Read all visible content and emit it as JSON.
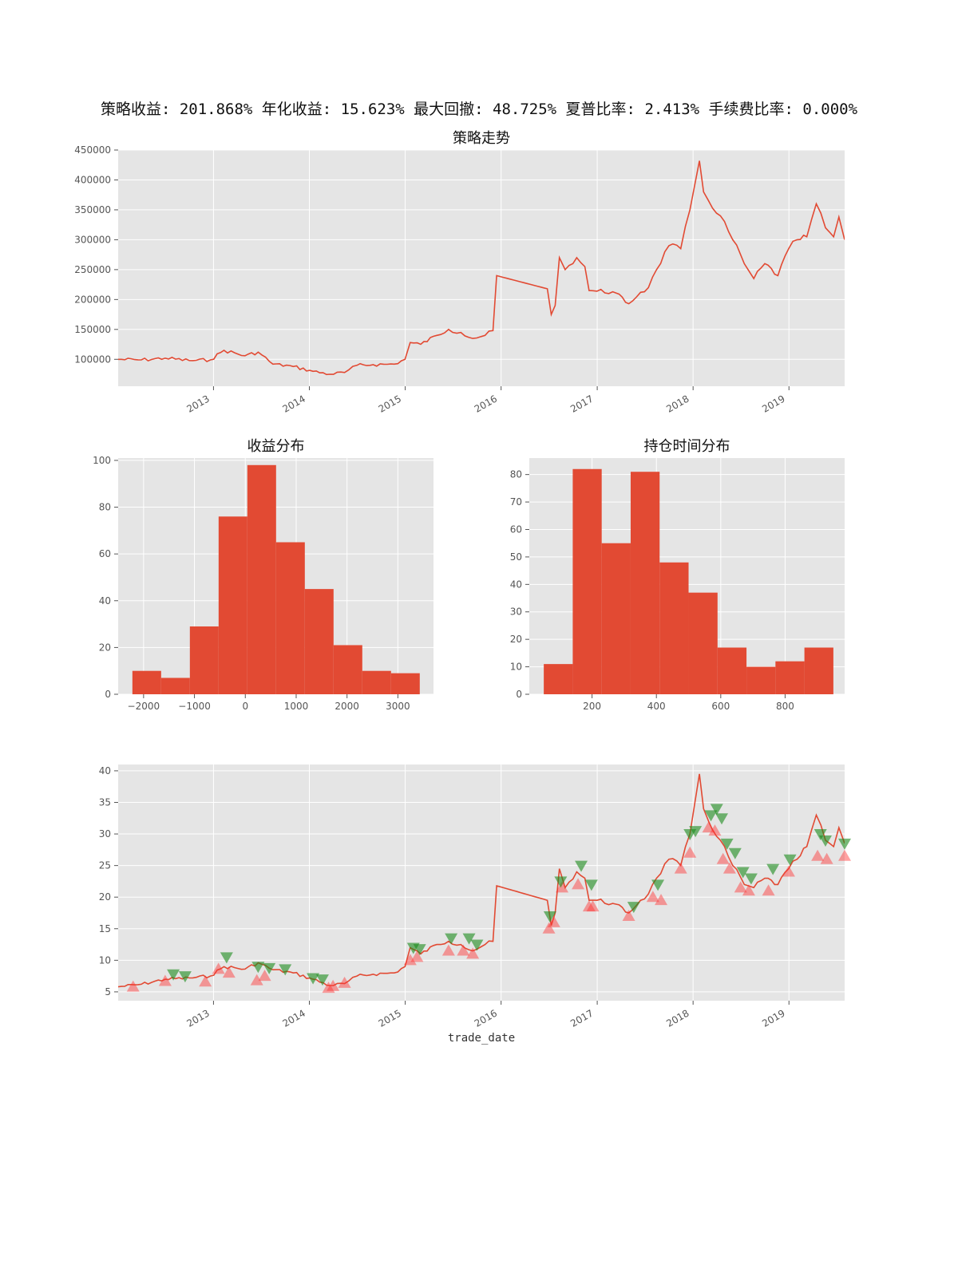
{
  "figure": {
    "suptitle": "策略收益: 201.868% 年化收益: 15.623% 最大回撤: 48.725% 夏普比率: 2.413% 手续费比率: 0.000%"
  },
  "colors": {
    "line": "#e24a33",
    "bar": "#e24a33",
    "panel_bg": "#e5e5e5",
    "grid": "#ffffff",
    "buy_marker": "#ff3030",
    "sell_marker": "#1a8a1a"
  },
  "chart_data": [
    {
      "id": "equity",
      "type": "line",
      "title": "策略走势",
      "xlabel": "",
      "ylabel": "",
      "x_tick_labels": [
        "2013",
        "2014",
        "2015",
        "2016",
        "2017",
        "2018",
        "2019"
      ],
      "y_ticks": [
        100000,
        150000,
        200000,
        250000,
        300000,
        350000,
        400000,
        450000
      ],
      "xlim": [
        "2012-01-04",
        "2019-08-01"
      ],
      "ylim": [
        55000,
        450000
      ],
      "grid": true,
      "series": [
        {
          "x": [
            "2012-01-04",
            "2012-04-01",
            "2012-07-01",
            "2012-10-01",
            "2012-12-20",
            "2013-02-10",
            "2013-05-01",
            "2013-06-20",
            "2013-08-15",
            "2013-11-01",
            "2014-01-15",
            "2014-03-20",
            "2014-05-15",
            "2014-07-01",
            "2014-09-01",
            "2014-11-20",
            "2014-12-31",
            "2015-01-20",
            "2015-03-01",
            "2015-05-01",
            "2015-06-15",
            "2015-08-01",
            "2015-09-15",
            "2015-11-01",
            "2015-12-01",
            "2015-12-15",
            "2016-06-25",
            "2016-07-10",
            "2016-07-25",
            "2016-08-10",
            "2016-09-01",
            "2016-10-15",
            "2016-11-15",
            "2016-12-01",
            "2016-12-31",
            "2017-03-01",
            "2017-05-01",
            "2017-06-15",
            "2017-07-15",
            "2017-08-15",
            "2017-10-01",
            "2017-11-15",
            "2017-12-20",
            "2018-01-25",
            "2018-02-10",
            "2018-03-01",
            "2018-04-15",
            "2018-06-01",
            "2018-07-15",
            "2018-08-20",
            "2018-10-01",
            "2018-11-20",
            "2018-12-31",
            "2019-02-01",
            "2019-03-10",
            "2019-04-15",
            "2019-05-20",
            "2019-06-20",
            "2019-07-10",
            "2019-08-01"
          ],
          "y": [
            100000,
            99000,
            102000,
            98000,
            99000,
            115000,
            106000,
            112000,
            92000,
            88000,
            80000,
            75000,
            78000,
            90000,
            91000,
            92000,
            100000,
            128000,
            125000,
            140000,
            150000,
            145000,
            135000,
            140000,
            148000,
            240000,
            218000,
            175000,
            190000,
            270000,
            250000,
            270000,
            255000,
            215000,
            214000,
            213000,
            193000,
            212000,
            220000,
            250000,
            290000,
            285000,
            350000,
            432000,
            380000,
            365000,
            340000,
            300000,
            260000,
            235000,
            260000,
            240000,
            285000,
            300000,
            305000,
            360000,
            320000,
            305000,
            338000,
            300000
          ]
        }
      ]
    },
    {
      "id": "profit_hist",
      "type": "bar",
      "title": "收益分布",
      "x_ticks": [
        -2000,
        -1000,
        0,
        1000,
        2000,
        3000
      ],
      "x_tick_labels": [
        "−2000",
        "−1000",
        "0",
        "1000",
        "2000",
        "3000"
      ],
      "y_ticks": [
        0,
        20,
        40,
        60,
        80,
        100
      ],
      "xlim": [
        -2500,
        3700
      ],
      "ylim": [
        0,
        101
      ],
      "bin_edges": [
        -2220,
        -1655,
        -1090,
        -525,
        40,
        605,
        1170,
        1735,
        2300,
        2865,
        3430
      ],
      "values": [
        10,
        7,
        29,
        76,
        98,
        65,
        45,
        21,
        10,
        9
      ]
    },
    {
      "id": "hold_hist",
      "type": "bar",
      "title": "持仓时间分布",
      "x_ticks": [
        200,
        400,
        600,
        800
      ],
      "x_tick_labels": [
        "200",
        "400",
        "600",
        "800"
      ],
      "y_ticks": [
        0,
        10,
        20,
        30,
        40,
        50,
        60,
        70,
        80
      ],
      "xlim": [
        5,
        985
      ],
      "ylim": [
        0,
        86
      ],
      "bin_edges": [
        50,
        140,
        230,
        320,
        410,
        500,
        590,
        680,
        770,
        860,
        950
      ],
      "values": [
        11,
        82,
        55,
        81,
        48,
        37,
        17,
        10,
        12,
        17
      ]
    },
    {
      "id": "trades",
      "type": "line",
      "title": "",
      "xlabel": "trade_date",
      "ylabel": "",
      "x_tick_labels": [
        "2013",
        "2014",
        "2015",
        "2016",
        "2017",
        "2018",
        "2019"
      ],
      "y_ticks": [
        5,
        10,
        15,
        20,
        25,
        30,
        35,
        40
      ],
      "xlim": [
        "2012-01-04",
        "2019-08-01"
      ],
      "ylim": [
        3.6,
        41
      ],
      "grid": true,
      "series": [
        {
          "x": [
            "2012-01-04",
            "2012-04-01",
            "2012-07-01",
            "2012-10-01",
            "2012-12-20",
            "2013-02-10",
            "2013-05-01",
            "2013-06-20",
            "2013-08-15",
            "2013-11-01",
            "2014-01-15",
            "2014-03-20",
            "2014-05-15",
            "2014-07-01",
            "2014-09-01",
            "2014-11-20",
            "2014-12-31",
            "2015-01-20",
            "2015-03-01",
            "2015-05-01",
            "2015-06-15",
            "2015-08-01",
            "2015-09-15",
            "2015-11-01",
            "2015-12-01",
            "2015-12-15",
            "2016-06-25",
            "2016-07-10",
            "2016-07-25",
            "2016-08-10",
            "2016-09-01",
            "2016-10-15",
            "2016-11-15",
            "2016-12-01",
            "2016-12-31",
            "2017-03-01",
            "2017-05-01",
            "2017-06-15",
            "2017-07-15",
            "2017-08-15",
            "2017-10-01",
            "2017-11-15",
            "2017-12-20",
            "2018-01-25",
            "2018-02-10",
            "2018-03-01",
            "2018-04-15",
            "2018-06-01",
            "2018-07-15",
            "2018-08-20",
            "2018-10-01",
            "2018-11-20",
            "2018-12-31",
            "2019-02-01",
            "2019-03-10",
            "2019-04-15",
            "2019-05-20",
            "2019-06-20",
            "2019-07-10",
            "2019-08-01"
          ],
          "y": [
            5.8,
            6.2,
            7.0,
            7.2,
            7.5,
            9.0,
            8.6,
            9.6,
            8.5,
            8.0,
            7.0,
            6.0,
            6.3,
            7.5,
            7.8,
            8.0,
            9.0,
            12.0,
            11.0,
            12.5,
            13.0,
            12.5,
            11.5,
            12.5,
            13.0,
            21.8,
            19.5,
            15.5,
            17.5,
            24.5,
            21.5,
            24.0,
            23.0,
            19.5,
            19.5,
            19.0,
            17.5,
            19.5,
            20.5,
            23.0,
            26.0,
            25.0,
            30.0,
            39.5,
            34.0,
            32.0,
            29.0,
            25.0,
            22.0,
            21.5,
            23.0,
            22.0,
            24.5,
            26.0,
            28.0,
            33.0,
            29.0,
            28.0,
            31.0,
            28.5
          ]
        }
      ],
      "buy_points": [
        {
          "x": "2012-03-01",
          "y": 5.8
        },
        {
          "x": "2012-07-01",
          "y": 6.7
        },
        {
          "x": "2012-12-01",
          "y": 6.6
        },
        {
          "x": "2013-01-20",
          "y": 8.6
        },
        {
          "x": "2013-03-01",
          "y": 8.0
        },
        {
          "x": "2013-06-15",
          "y": 6.8
        },
        {
          "x": "2013-07-15",
          "y": 7.5
        },
        {
          "x": "2014-03-15",
          "y": 5.6
        },
        {
          "x": "2014-04-01",
          "y": 5.9
        },
        {
          "x": "2014-05-15",
          "y": 6.4
        },
        {
          "x": "2015-01-20",
          "y": 10.0
        },
        {
          "x": "2015-02-15",
          "y": 10.5
        },
        {
          "x": "2015-06-15",
          "y": 11.5
        },
        {
          "x": "2015-08-10",
          "y": 11.5
        },
        {
          "x": "2015-09-15",
          "y": 11.0
        },
        {
          "x": "2016-07-01",
          "y": 15.0
        },
        {
          "x": "2016-07-20",
          "y": 16.0
        },
        {
          "x": "2016-08-20",
          "y": 21.5
        },
        {
          "x": "2016-10-20",
          "y": 22.0
        },
        {
          "x": "2016-12-01",
          "y": 18.5
        },
        {
          "x": "2016-12-15",
          "y": 18.5
        },
        {
          "x": "2017-05-01",
          "y": 17.0
        },
        {
          "x": "2017-08-01",
          "y": 20.0
        },
        {
          "x": "2017-09-01",
          "y": 19.5
        },
        {
          "x": "2017-11-15",
          "y": 24.5
        },
        {
          "x": "2017-12-20",
          "y": 27.0
        },
        {
          "x": "2018-03-01",
          "y": 31.0
        },
        {
          "x": "2018-03-25",
          "y": 30.5
        },
        {
          "x": "2018-04-25",
          "y": 26.0
        },
        {
          "x": "2018-05-20",
          "y": 24.5
        },
        {
          "x": "2018-07-01",
          "y": 21.5
        },
        {
          "x": "2018-08-01",
          "y": 21.0
        },
        {
          "x": "2018-10-15",
          "y": 21.0
        },
        {
          "x": "2018-12-31",
          "y": 24.0
        },
        {
          "x": "2019-04-20",
          "y": 26.5
        },
        {
          "x": "2019-05-25",
          "y": 26.0
        },
        {
          "x": "2019-08-01",
          "y": 26.5
        }
      ],
      "sell_points": [
        {
          "x": "2012-08-01",
          "y": 7.8
        },
        {
          "x": "2012-09-15",
          "y": 7.5
        },
        {
          "x": "2013-02-20",
          "y": 10.5
        },
        {
          "x": "2013-06-20",
          "y": 9.0
        },
        {
          "x": "2013-08-01",
          "y": 8.8
        },
        {
          "x": "2013-10-01",
          "y": 8.6
        },
        {
          "x": "2014-01-15",
          "y": 7.2
        },
        {
          "x": "2014-02-20",
          "y": 7.0
        },
        {
          "x": "2015-02-01",
          "y": 12.0
        },
        {
          "x": "2015-02-25",
          "y": 11.8
        },
        {
          "x": "2015-06-25",
          "y": 13.5
        },
        {
          "x": "2015-09-01",
          "y": 13.5
        },
        {
          "x": "2015-10-01",
          "y": 12.5
        },
        {
          "x": "2016-07-05",
          "y": 17.0
        },
        {
          "x": "2016-08-15",
          "y": 22.5
        },
        {
          "x": "2016-11-01",
          "y": 25.0
        },
        {
          "x": "2016-12-10",
          "y": 22.0
        },
        {
          "x": "2017-05-20",
          "y": 18.5
        },
        {
          "x": "2017-08-20",
          "y": 22.0
        },
        {
          "x": "2017-12-20",
          "y": 30.0
        },
        {
          "x": "2018-01-10",
          "y": 30.5
        },
        {
          "x": "2018-03-10",
          "y": 33.0
        },
        {
          "x": "2018-04-01",
          "y": 34.0
        },
        {
          "x": "2018-04-20",
          "y": 32.5
        },
        {
          "x": "2018-05-10",
          "y": 28.5
        },
        {
          "x": "2018-06-10",
          "y": 27.0
        },
        {
          "x": "2018-07-10",
          "y": 24.0
        },
        {
          "x": "2018-08-10",
          "y": 23.0
        },
        {
          "x": "2018-11-01",
          "y": 24.5
        },
        {
          "x": "2019-01-05",
          "y": 26.0
        },
        {
          "x": "2019-05-01",
          "y": 30.0
        },
        {
          "x": "2019-05-20",
          "y": 29.0
        },
        {
          "x": "2019-08-01",
          "y": 28.5
        }
      ]
    }
  ]
}
